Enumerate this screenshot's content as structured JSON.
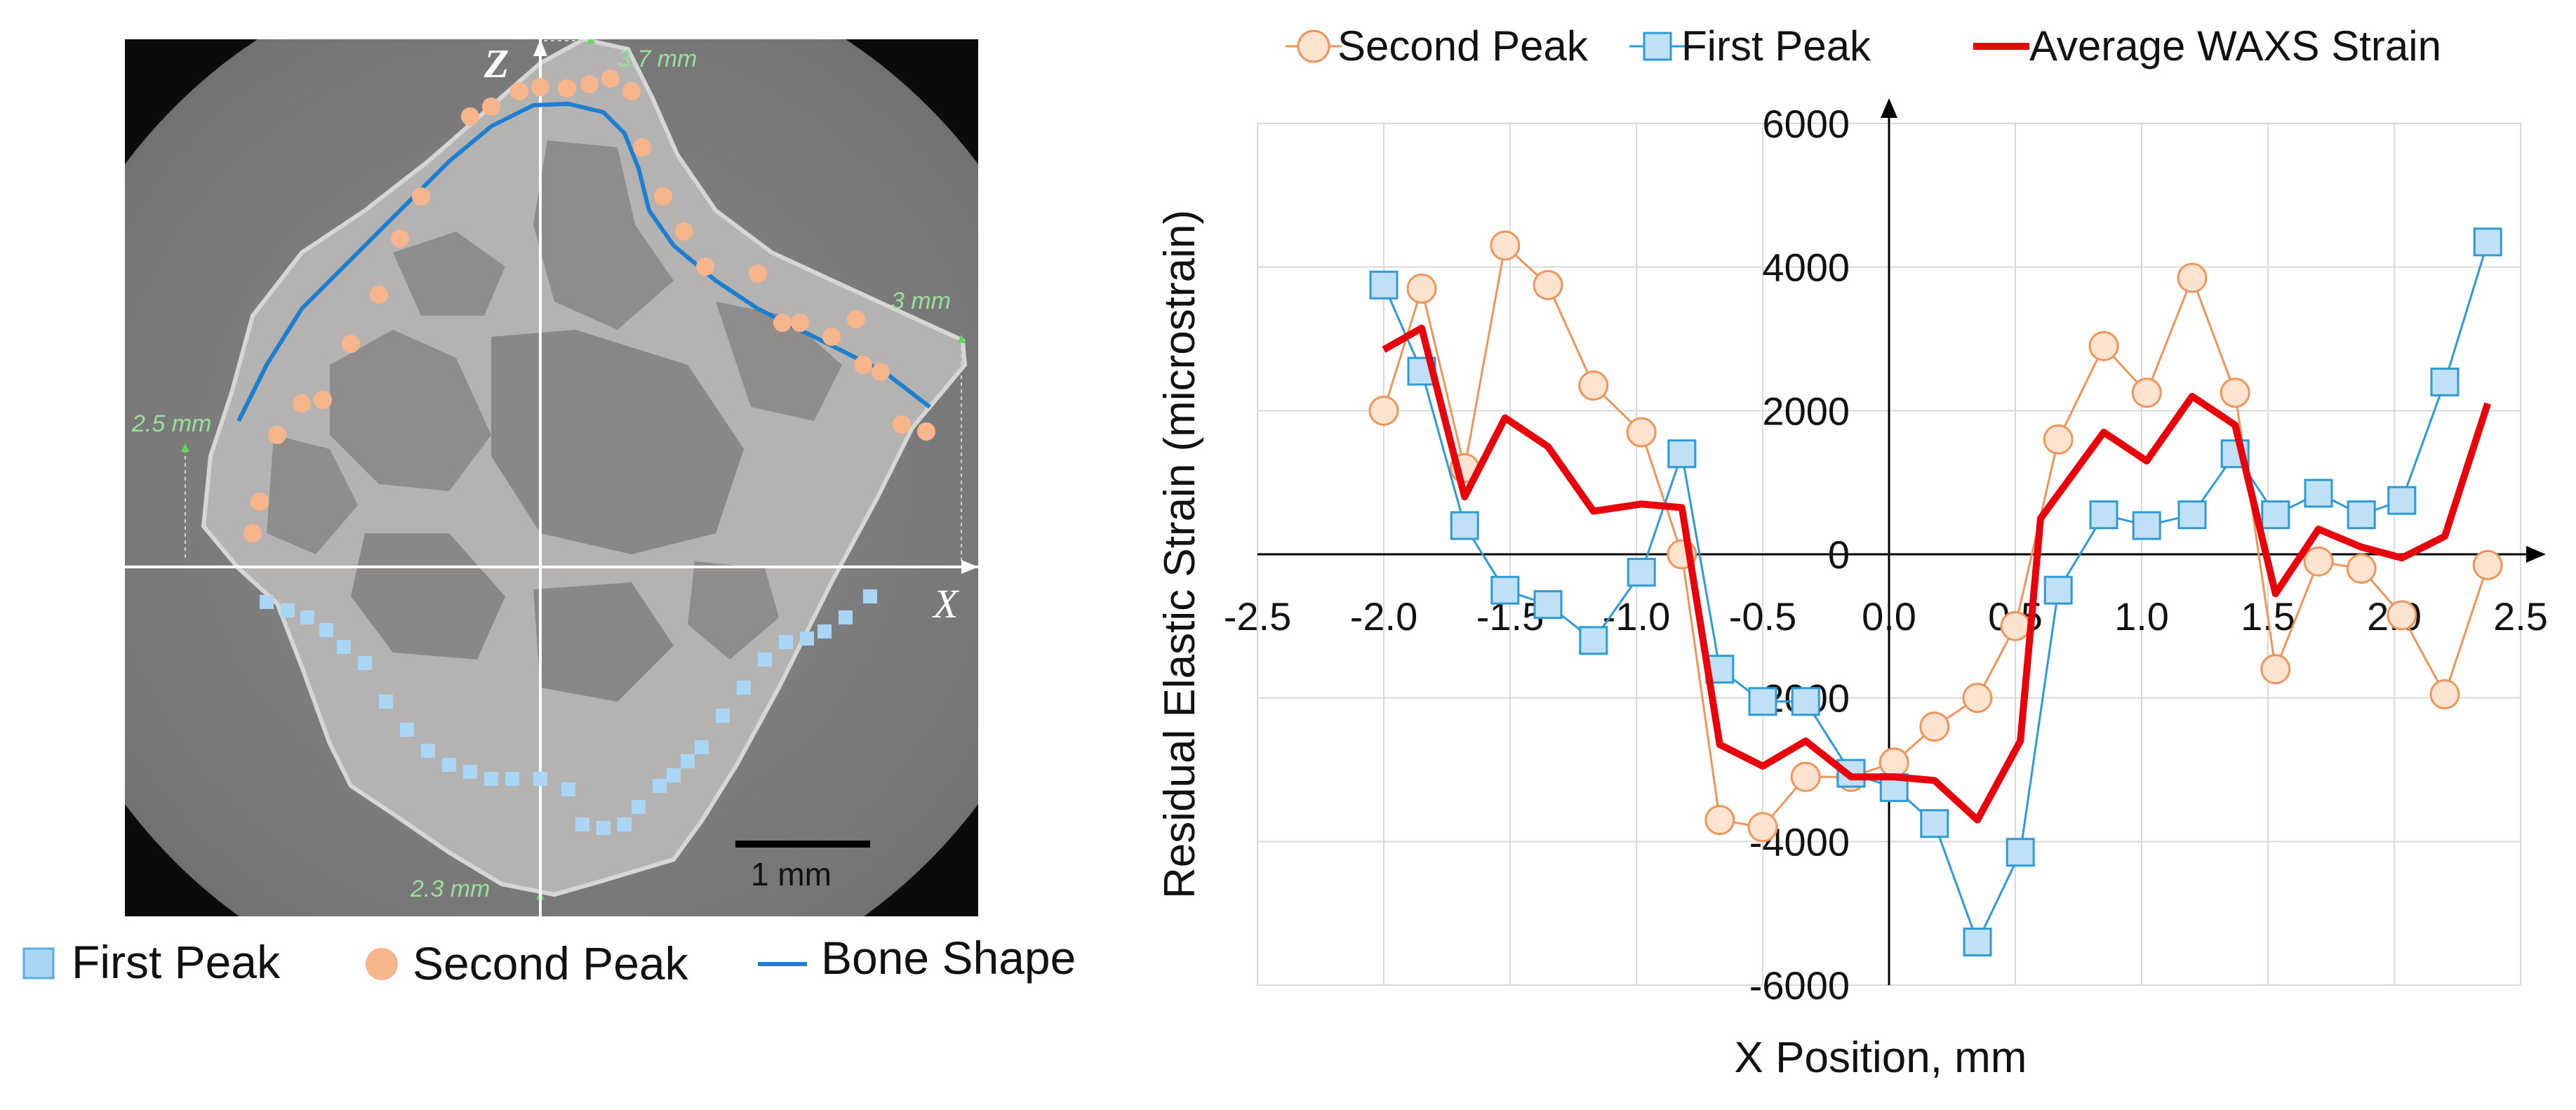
{
  "left_panel": {
    "z_axis_label": "Z",
    "x_axis_label": "X",
    "dims": {
      "top": "3.7 mm",
      "right": "3 mm",
      "left": "2.5 mm",
      "bottom": "2.3 mm"
    },
    "scale_bar_label": "1 mm",
    "legend": {
      "first_peak": "First Peak",
      "second_peak": "Second Peak",
      "bone_shape": "Bone Shape"
    },
    "colors": {
      "first_peak": "#a9d6f5",
      "second_peak": "#f8b58c",
      "bone_shape": "#1f7fcf"
    }
  },
  "chart_data": {
    "type": "line",
    "title": "",
    "xlabel": "X Position, mm",
    "ylabel": "Residual Elastic Strain (microstrain)",
    "xlim": [
      -2.5,
      2.5
    ],
    "ylim": [
      -6000,
      6000
    ],
    "x_ticks": [
      -2.5,
      -2.0,
      -1.5,
      -1.0,
      -0.5,
      0.0,
      0.5,
      1.0,
      1.5,
      2.0,
      2.5
    ],
    "x_tick_labels": [
      "-2.5",
      "-2.0",
      "-1.5",
      "-1.0",
      "-0.5",
      "0.0",
      "0.5",
      "1.0",
      "1.5",
      "2.0",
      "2.5"
    ],
    "y_ticks": [
      -6000,
      -4000,
      -2000,
      0,
      2000,
      4000,
      6000
    ],
    "y_tick_labels": [
      "-6000",
      "-4000",
      "-2000",
      "0",
      "2000",
      "4000",
      "6000"
    ],
    "grid": true,
    "legend_position": "top",
    "series": [
      {
        "name": "Second Peak",
        "marker": "circle",
        "color": "#f0955a",
        "fill": "#fde3d0",
        "x": [
          -2.0,
          -1.85,
          -1.68,
          -1.52,
          -1.35,
          -1.17,
          -0.98,
          -0.82,
          -0.67,
          -0.5,
          -0.33,
          -0.15,
          0.02,
          0.18,
          0.35,
          0.5,
          0.67,
          0.85,
          1.02,
          1.2,
          1.37,
          1.53,
          1.7,
          1.87,
          2.03,
          2.2,
          2.37
        ],
        "values": [
          2000,
          3700,
          1200,
          4300,
          3750,
          2350,
          1700,
          0,
          -3700,
          -3800,
          -3100,
          -3100,
          -2900,
          -2400,
          -2000,
          -1000,
          1600,
          2900,
          2250,
          3850,
          2250,
          -1600,
          -100,
          -200,
          -850,
          -1950,
          -150
        ]
      },
      {
        "name": "First Peak",
        "marker": "square",
        "color": "#2e9ad6",
        "fill": "#bfe0f5",
        "x": [
          -2.0,
          -1.85,
          -1.68,
          -1.52,
          -1.35,
          -1.17,
          -0.98,
          -0.82,
          -0.67,
          -0.5,
          -0.33,
          -0.15,
          0.02,
          0.18,
          0.35,
          0.52,
          0.67,
          0.85,
          1.02,
          1.2,
          1.37,
          1.53,
          1.7,
          1.87,
          2.03,
          2.2,
          2.37
        ],
        "values": [
          3750,
          2550,
          400,
          -500,
          -700,
          -1200,
          -250,
          1400,
          -1600,
          -2050,
          -2050,
          -3050,
          -3250,
          -3750,
          -5400,
          -4150,
          -500,
          550,
          400,
          550,
          1400,
          550,
          850,
          550,
          750,
          2400,
          4350
        ]
      },
      {
        "name": "Average WAXS Strain",
        "marker": "none",
        "color": "#e8000b",
        "fill": "none",
        "x": [
          -2.0,
          -1.85,
          -1.68,
          -1.52,
          -1.35,
          -1.17,
          -0.98,
          -0.82,
          -0.67,
          -0.5,
          -0.33,
          -0.15,
          0.02,
          0.18,
          0.35,
          0.52,
          0.6,
          0.85,
          1.02,
          1.2,
          1.37,
          1.53,
          1.7,
          1.87,
          2.03,
          2.2,
          2.37
        ],
        "values": [
          2850,
          3150,
          800,
          1900,
          1500,
          600,
          700,
          650,
          -2650,
          -2950,
          -2600,
          -3100,
          -3100,
          -3150,
          -3700,
          -2600,
          500,
          1700,
          1300,
          2200,
          1800,
          -550,
          350,
          100,
          -50,
          250,
          2100
        ]
      }
    ]
  }
}
